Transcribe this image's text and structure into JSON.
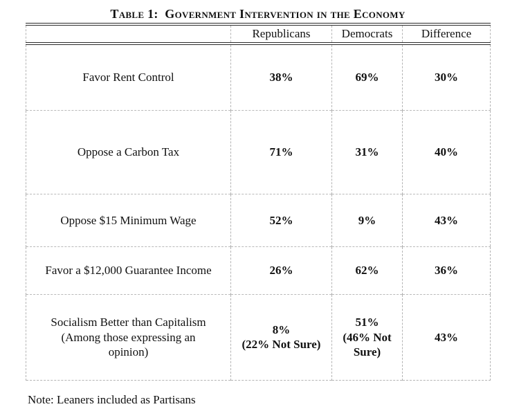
{
  "title": "Table 1:  Government Intervention in the Economy",
  "table": {
    "headers": [
      "",
      "Republicans",
      "Democrats",
      "Difference"
    ],
    "rows": [
      {
        "label": "Favor Rent Control",
        "republicans": "38%",
        "democrats": "69%",
        "difference": "30%"
      },
      {
        "label": "Oppose a Carbon Tax",
        "republicans": "71%",
        "democrats": "31%",
        "difference": "40%"
      },
      {
        "label": "Oppose $15 Minimum Wage",
        "republicans": "52%",
        "democrats": "9%",
        "difference": "43%"
      },
      {
        "label": "Favor a $12,000 Guarantee Income",
        "republicans": "26%",
        "democrats": "62%",
        "difference": "36%"
      },
      {
        "label": "Socialism Better than Capitalism\n(Among those expressing an\nopinion)",
        "republicans": "8%\n(22% Not Sure)",
        "democrats": "51%\n(46% Not\nSure)",
        "difference": "43%"
      }
    ]
  },
  "note": "Note: Leaners included as Partisans"
}
